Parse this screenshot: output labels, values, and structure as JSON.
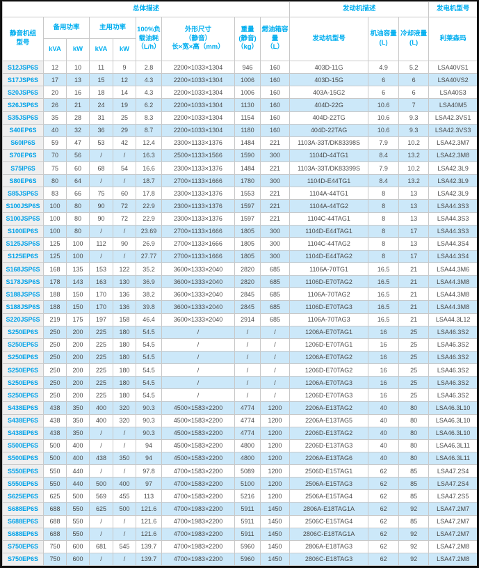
{
  "colors": {
    "header_text": "#00aeef",
    "model_link_text": "#00a2e9",
    "body_text": "#4a4a4a",
    "alt_row_bg": "#cce8f9",
    "model_col_bg": "#efefef",
    "grid_border": "#c8c8c8",
    "outer_frame": "#111111"
  },
  "table": {
    "header": {
      "group_overall": "总体描述",
      "group_engine": "发动机描述",
      "group_generator": "发电机型号",
      "col_model": "静音机组\n型号",
      "col_standby": "备用功率",
      "col_prime": "主用功率",
      "col_kva": "kVA",
      "col_kw": "kW",
      "col_fuel": "100%负\n载油耗\n（L/h）",
      "col_dims": "外形尺寸\n（静音）\n长×宽×高（mm）",
      "col_weight": "重量\n(静音)\n（kg）",
      "col_tank": "燃油箱容\n量\n（L）",
      "col_engine": "发动机型号",
      "col_oil": "机油容量\n(L)",
      "col_coolant": "冷却液量\n(L)",
      "col_brand": "利莱森玛"
    },
    "rows": [
      [
        "S12JSP6S",
        "12",
        "10",
        "11",
        "9",
        "2.8",
        "2200×1033×1304",
        "946",
        "160",
        "403D-11G",
        "4.9",
        "5.2",
        "LSA40VS1"
      ],
      [
        "S17JSP6S",
        "17",
        "13",
        "15",
        "12",
        "4.3",
        "2200×1033×1304",
        "1006",
        "160",
        "403D-15G",
        "6",
        "6",
        "LSA40VS2"
      ],
      [
        "S20JSP6S",
        "20",
        "16",
        "18",
        "14",
        "4.3",
        "2200×1033×1304",
        "1006",
        "160",
        "403A-15G2",
        "6",
        "6",
        "LSA40S3"
      ],
      [
        "S26JSP6S",
        "26",
        "21",
        "24",
        "19",
        "6.2",
        "2200×1033×1304",
        "1130",
        "160",
        "404D-22G",
        "10.6",
        "7",
        "LSA40M5"
      ],
      [
        "S35JSP6S",
        "35",
        "28",
        "31",
        "25",
        "8.3",
        "2200×1033×1304",
        "1154",
        "160",
        "404D-22TG",
        "10.6",
        "9.3",
        "LSA42.3VS1"
      ],
      [
        "S40EP6S",
        "40",
        "32",
        "36",
        "29",
        "8.7",
        "2200×1033×1304",
        "1180",
        "160",
        "404D-22TAG",
        "10.6",
        "9.3",
        "LSA42.3VS3"
      ],
      [
        "S60IP6S",
        "59",
        "47",
        "53",
        "42",
        "12.4",
        "2300×1133×1376",
        "1484",
        "221",
        "1103A-33T/DK83398S",
        "7.9",
        "10.2",
        "LSA42.3M7"
      ],
      [
        "S70EP6S",
        "70",
        "56",
        "/",
        "/",
        "16.3",
        "2500×1133×1566",
        "1590",
        "300",
        "1104D-44TG1",
        "8.4",
        "13.2",
        "LSA42.3M8"
      ],
      [
        "S75IP6S",
        "75",
        "60",
        "68",
        "54",
        "16.6",
        "2300×1133×1376",
        "1484",
        "221",
        "1103A-33T/DK83399S",
        "7.9",
        "10.2",
        "LSA42.3L9"
      ],
      [
        "S80EP6S",
        "80",
        "64",
        "/",
        "/",
        "18.7",
        "2700×1133×1666",
        "1780",
        "300",
        "1104D-E44TG1",
        "8.4",
        "13.2",
        "LSA42.3L9"
      ],
      [
        "S85JSP6S",
        "83",
        "66",
        "75",
        "60",
        "17.8",
        "2300×1133×1376",
        "1553",
        "221",
        "1104A-44TG1",
        "8",
        "13",
        "LSA42.3L9"
      ],
      [
        "S100JSP6S",
        "100",
        "80",
        "90",
        "72",
        "22.9",
        "2300×1133×1376",
        "1597",
        "221",
        "1104A-44TG2",
        "8",
        "13",
        "LSA44.3S3"
      ],
      [
        "S100JSP6S",
        "100",
        "80",
        "90",
        "72",
        "22.9",
        "2300×1133×1376",
        "1597",
        "221",
        "1104C-44TAG1",
        "8",
        "13",
        "LSA44.3S3"
      ],
      [
        "S100EP6S",
        "100",
        "80",
        "/",
        "/",
        "23.69",
        "2700×1133×1666",
        "1805",
        "300",
        "1104D-E44TAG1",
        "8",
        "17",
        "LSA44.3S3"
      ],
      [
        "S125JSP6S",
        "125",
        "100",
        "112",
        "90",
        "26.9",
        "2700×1133×1666",
        "1805",
        "300",
        "1104C-44TAG2",
        "8",
        "13",
        "LSA44.3S4"
      ],
      [
        "S125EP6S",
        "125",
        "100",
        "/",
        "/",
        "27.77",
        "2700×1133×1666",
        "1805",
        "300",
        "1104D-E44TAG2",
        "8",
        "17",
        "LSA44.3S4"
      ],
      [
        "S168JSP6S",
        "168",
        "135",
        "153",
        "122",
        "35.2",
        "3600×1333×2040",
        "2820",
        "685",
        "1106A-70TG1",
        "16.5",
        "21",
        "LSA44.3M6"
      ],
      [
        "S178JSP6S",
        "178",
        "143",
        "163",
        "130",
        "36.9",
        "3600×1333×2040",
        "2820",
        "685",
        "1106D-E70TAG2",
        "16.5",
        "21",
        "LSA44.3M8"
      ],
      [
        "S188JSP6S",
        "188",
        "150",
        "170",
        "136",
        "38.2",
        "3600×1333×2040",
        "2845",
        "685",
        "1106A-70TAG2",
        "16.5",
        "21",
        "LSA44.3M8"
      ],
      [
        "S188JSP6S",
        "188",
        "150",
        "170",
        "136",
        "39.8",
        "3600×1333×2040",
        "2845",
        "685",
        "1106D-E70TAG3",
        "16.5",
        "21",
        "LSA44.3M8"
      ],
      [
        "S220JSP6S",
        "219",
        "175",
        "197",
        "158",
        "46.4",
        "3600×1333×2040",
        "2914",
        "685",
        "1106A-70TAG3",
        "16.5",
        "21",
        "LSA44.3L12"
      ],
      [
        "S250EP6S",
        "250",
        "200",
        "225",
        "180",
        "54.5",
        "/",
        "/",
        "/",
        "1206A-E70TAG1",
        "16",
        "25",
        "LSA46.3S2"
      ],
      [
        "S250EP6S",
        "250",
        "200",
        "225",
        "180",
        "54.5",
        "/",
        "/",
        "/",
        "1206D-E70TAG1",
        "16",
        "25",
        "LSA46.3S2"
      ],
      [
        "S250EP6S",
        "250",
        "200",
        "225",
        "180",
        "54.5",
        "/",
        "/",
        "/",
        "1206A-E70TAG2",
        "16",
        "25",
        "LSA46.3S2"
      ],
      [
        "S250EP6S",
        "250",
        "200",
        "225",
        "180",
        "54.5",
        "/",
        "/",
        "/",
        "1206D-E70TAG2",
        "16",
        "25",
        "LSA46.3S2"
      ],
      [
        "S250EP6S",
        "250",
        "200",
        "225",
        "180",
        "54.5",
        "/",
        "/",
        "/",
        "1206A-E70TAG3",
        "16",
        "25",
        "LSA46.3S2"
      ],
      [
        "S250EP6S",
        "250",
        "200",
        "225",
        "180",
        "54.5",
        "/",
        "/",
        "/",
        "1206D-E70TAG3",
        "16",
        "25",
        "LSA46.3S2"
      ],
      [
        "S438EP6S",
        "438",
        "350",
        "400",
        "320",
        "90.3",
        "4500×1583×2200",
        "4774",
        "1200",
        "2206A-E13TAG2",
        "40",
        "80",
        "LSA46.3L10"
      ],
      [
        "S438EP6S",
        "438",
        "350",
        "400",
        "320",
        "90.3",
        "4500×1583×2200",
        "4774",
        "1200",
        "2206A-E13TAG5",
        "40",
        "80",
        "LSA46.3L10"
      ],
      [
        "S438EP6S",
        "438",
        "350",
        "/",
        "/",
        "90.3",
        "4500×1583×2200",
        "4774",
        "1200",
        "2206D-E13TAG2",
        "40",
        "80",
        "LSA46.3L10"
      ],
      [
        "S500EP6S",
        "500",
        "400",
        "/",
        "/",
        "94",
        "4500×1583×2200",
        "4800",
        "1200",
        "2206D-E13TAG3",
        "40",
        "80",
        "LSA46.3L11"
      ],
      [
        "S500EP6S",
        "500",
        "400",
        "438",
        "350",
        "94",
        "4500×1583×2200",
        "4800",
        "1200",
        "2206A-E13TAG6",
        "40",
        "80",
        "LSA46.3L11"
      ],
      [
        "S550EP6S",
        "550",
        "440",
        "/",
        "/",
        "97.8",
        "4700×1583×2200",
        "5089",
        "1200",
        "2506D-E15TAG1",
        "62",
        "85",
        "LSA47.2S4"
      ],
      [
        "S550EP6S",
        "550",
        "440",
        "500",
        "400",
        "97",
        "4700×1583×2200",
        "5100",
        "1200",
        "2506A-E15TAG3",
        "62",
        "85",
        "LSA47.2S4"
      ],
      [
        "S625EP6S",
        "625",
        "500",
        "569",
        "455",
        "113",
        "4700×1583×2200",
        "5216",
        "1200",
        "2506A-E15TAG4",
        "62",
        "85",
        "LSA47.2S5"
      ],
      [
        "S688EP6S",
        "688",
        "550",
        "625",
        "500",
        "121.6",
        "4700×1983×2200",
        "5911",
        "1450",
        "2806A-E18TAG1A",
        "62",
        "92",
        "LSA47.2M7"
      ],
      [
        "S688EP6S",
        "688",
        "550",
        "/",
        "/",
        "121.6",
        "4700×1983×2200",
        "5911",
        "1450",
        "2506C-E15TAG4",
        "62",
        "85",
        "LSA47.2M7"
      ],
      [
        "S688EP6S",
        "688",
        "550",
        "/",
        "/",
        "121.6",
        "4700×1983×2200",
        "5911",
        "1450",
        "2806C-E18TAG1A",
        "62",
        "92",
        "LSA47.2M7"
      ],
      [
        "S750EP6S",
        "750",
        "600",
        "681",
        "545",
        "139.7",
        "4700×1983×2200",
        "5960",
        "1450",
        "2806A-E18TAG3",
        "62",
        "92",
        "LSA47.2M8"
      ],
      [
        "S750EP6S",
        "750",
        "600",
        "/",
        "/",
        "139.7",
        "4700×1983×2200",
        "5960",
        "1450",
        "2806C-E18TAG3",
        "62",
        "92",
        "LSA47.2M8"
      ]
    ]
  }
}
